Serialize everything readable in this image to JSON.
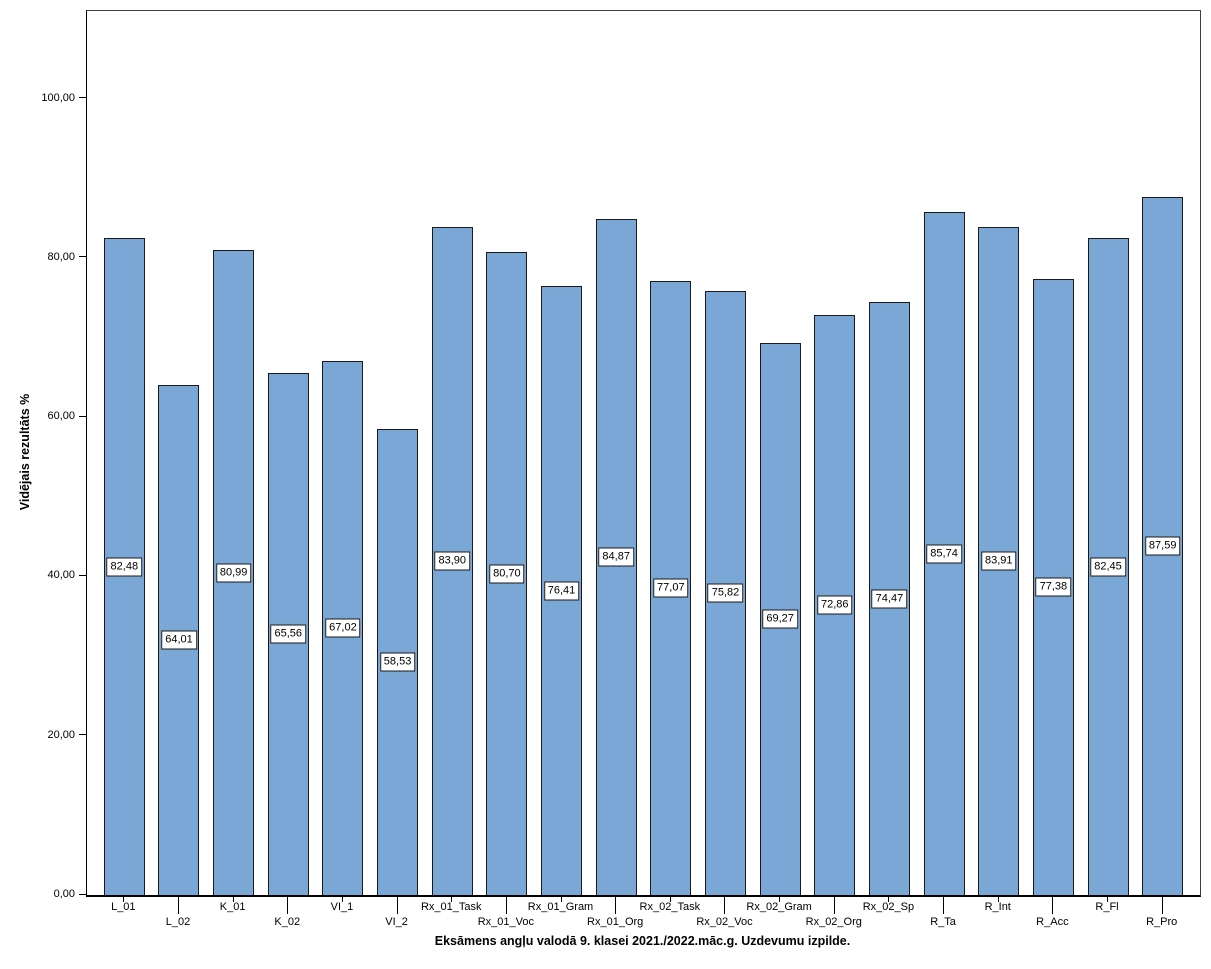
{
  "page": {
    "background": "#ffffff"
  },
  "chart_data": {
    "type": "bar",
    "title": "Eksāmens angļu valodā 9. klasei 2021./2022.māc.g. Uzdevumu izpilde.",
    "xlabel": "Eksāmens angļu valodā 9. klasei 2021./2022.māc.g. Uzdevumu izpilde.",
    "ylabel": "Vidējais rezultāts %",
    "categories": [
      "L_01",
      "L_02",
      "K_01",
      "K_02",
      "VI_1",
      "VI_2",
      "Rx_01_Task",
      "Rx_01_Voc",
      "Rx_01_Gram",
      "Rx_01_Org",
      "Rx_02_Task",
      "Rx_02_Voc",
      "Rx_02_Gram",
      "Rx_02_Org",
      "Rx_02_Sp",
      "R_Ta",
      "R_Int",
      "R_Acc",
      "R_Fl",
      "R_Pro"
    ],
    "values": [
      82.48,
      64.01,
      80.99,
      65.56,
      67.02,
      58.53,
      83.9,
      80.7,
      76.41,
      84.87,
      77.07,
      75.82,
      69.27,
      72.86,
      74.47,
      85.74,
      83.91,
      77.38,
      82.45,
      87.59
    ],
    "value_labels": [
      "82,48",
      "64,01",
      "80,99",
      "65,56",
      "67,02",
      "58,53",
      "83,90",
      "80,70",
      "76,41",
      "84,87",
      "77,07",
      "75,82",
      "69,27",
      "72,86",
      "74,47",
      "85,74",
      "83,91",
      "77,38",
      "82,45",
      "87,59"
    ],
    "yticks": [
      0,
      20,
      40,
      60,
      80,
      100
    ],
    "ytick_labels": [
      "0,00",
      "20,00",
      "40,00",
      "60,00",
      "80,00",
      "100,00"
    ],
    "ylim": [
      0,
      111
    ],
    "grid": false,
    "legend": null,
    "bar_color": "#7BA7D6",
    "bar_border_color": "#1a1a1a",
    "label_box_bg": "#ffffff",
    "label_box_border": "#1a1a1a",
    "label_position": "middle-of-bar",
    "x_label_layout": "alternating-two-rows"
  }
}
